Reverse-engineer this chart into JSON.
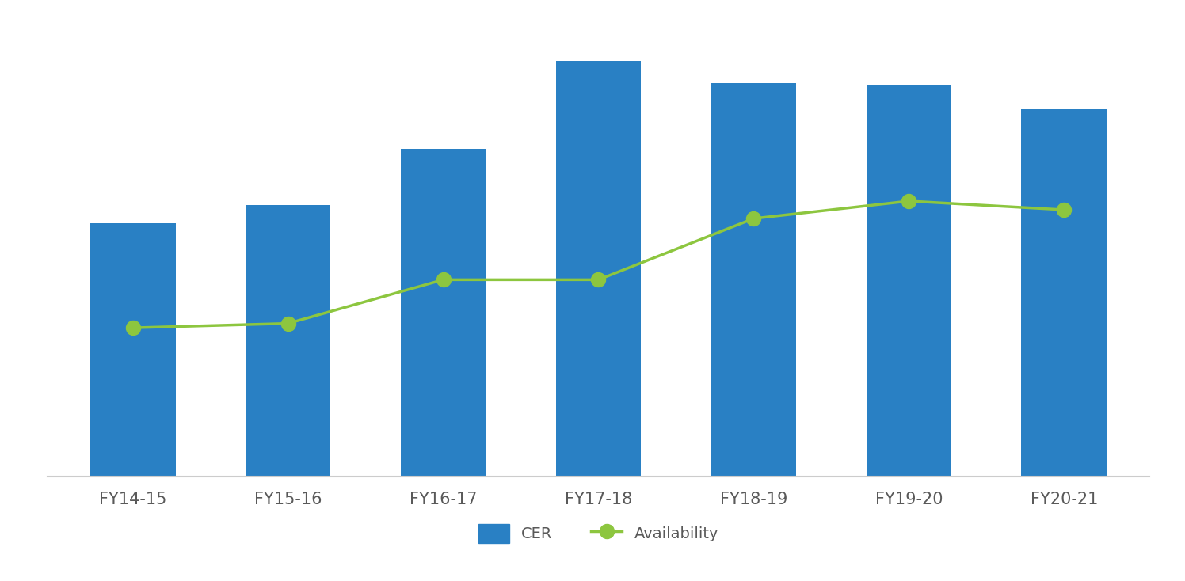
{
  "categories": [
    "FY14-15",
    "FY15-16",
    "FY16-17",
    "FY17-18",
    "FY18-19",
    "FY19-20",
    "FY20-21"
  ],
  "cer_values": [
    5.8,
    6.2,
    7.5,
    9.5,
    9.0,
    8.95,
    8.4
  ],
  "availability_values": [
    3.4,
    3.5,
    4.5,
    4.5,
    5.9,
    6.3,
    6.1
  ],
  "bar_color": "#2980c4",
  "line_color": "#8dc63f",
  "line_marker": "o",
  "line_marker_color": "#8dc63f",
  "legend_cer_label": "CER",
  "legend_avail_label": "Availability",
  "background_color": "#ffffff",
  "axis_line_color": "#cccccc",
  "tick_label_color": "#595959",
  "tick_fontsize": 15,
  "legend_fontsize": 14,
  "bar_width": 0.55,
  "ylim": [
    0,
    10.5
  ],
  "line_width": 2.5,
  "marker_size": 13
}
